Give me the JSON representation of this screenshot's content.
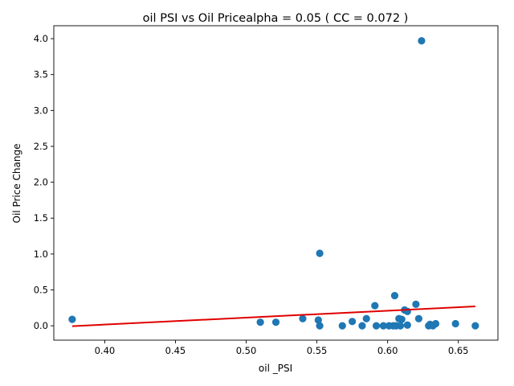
{
  "chart_data": {
    "type": "scatter",
    "title": "oil  PSI vs Oil Pricealpha = 0.05 ( CC = 0.072 )",
    "xlabel": "oil _PSI",
    "ylabel": "Oil Price Change",
    "xlim": [
      0.364,
      0.678
    ],
    "ylim": [
      -0.2,
      4.18
    ],
    "xticks": [
      0.4,
      0.45,
      0.5,
      0.55,
      0.6,
      0.65
    ],
    "xtick_labels": [
      "0.40",
      "0.45",
      "0.50",
      "0.55",
      "0.60",
      "0.65"
    ],
    "yticks": [
      0.0,
      0.5,
      1.0,
      1.5,
      2.0,
      2.5,
      3.0,
      3.5,
      4.0
    ],
    "ytick_labels": [
      "0.0",
      "0.5",
      "1.0",
      "1.5",
      "2.0",
      "2.5",
      "3.0",
      "3.5",
      "4.0"
    ],
    "grid": false,
    "points": [
      {
        "x": 0.377,
        "y": 0.09
      },
      {
        "x": 0.51,
        "y": 0.05
      },
      {
        "x": 0.521,
        "y": 0.05
      },
      {
        "x": 0.54,
        "y": 0.1
      },
      {
        "x": 0.551,
        "y": 0.08
      },
      {
        "x": 0.552,
        "y": 0.0
      },
      {
        "x": 0.552,
        "y": 1.01
      },
      {
        "x": 0.568,
        "y": 0.0
      },
      {
        "x": 0.575,
        "y": 0.06
      },
      {
        "x": 0.582,
        "y": 0.0
      },
      {
        "x": 0.585,
        "y": 0.1
      },
      {
        "x": 0.591,
        "y": 0.28
      },
      {
        "x": 0.592,
        "y": 0.0
      },
      {
        "x": 0.597,
        "y": 0.0
      },
      {
        "x": 0.601,
        "y": 0.0
      },
      {
        "x": 0.604,
        "y": 0.0
      },
      {
        "x": 0.605,
        "y": 0.42
      },
      {
        "x": 0.606,
        "y": 0.0
      },
      {
        "x": 0.608,
        "y": 0.1
      },
      {
        "x": 0.609,
        "y": 0.0
      },
      {
        "x": 0.61,
        "y": 0.09
      },
      {
        "x": 0.612,
        "y": 0.22
      },
      {
        "x": 0.614,
        "y": 0.2
      },
      {
        "x": 0.614,
        "y": 0.01
      },
      {
        "x": 0.62,
        "y": 0.3
      },
      {
        "x": 0.622,
        "y": 0.1
      },
      {
        "x": 0.624,
        "y": 3.97
      },
      {
        "x": 0.629,
        "y": 0.0
      },
      {
        "x": 0.63,
        "y": 0.02
      },
      {
        "x": 0.632,
        "y": 0.0
      },
      {
        "x": 0.634,
        "y": 0.03
      },
      {
        "x": 0.648,
        "y": 0.03
      },
      {
        "x": 0.662,
        "y": 0.0
      }
    ],
    "fit_line": {
      "color": "#e00000",
      "x": [
        0.377,
        0.662
      ],
      "y": [
        -0.005,
        0.27
      ]
    },
    "point_color": "#1f77b4"
  }
}
